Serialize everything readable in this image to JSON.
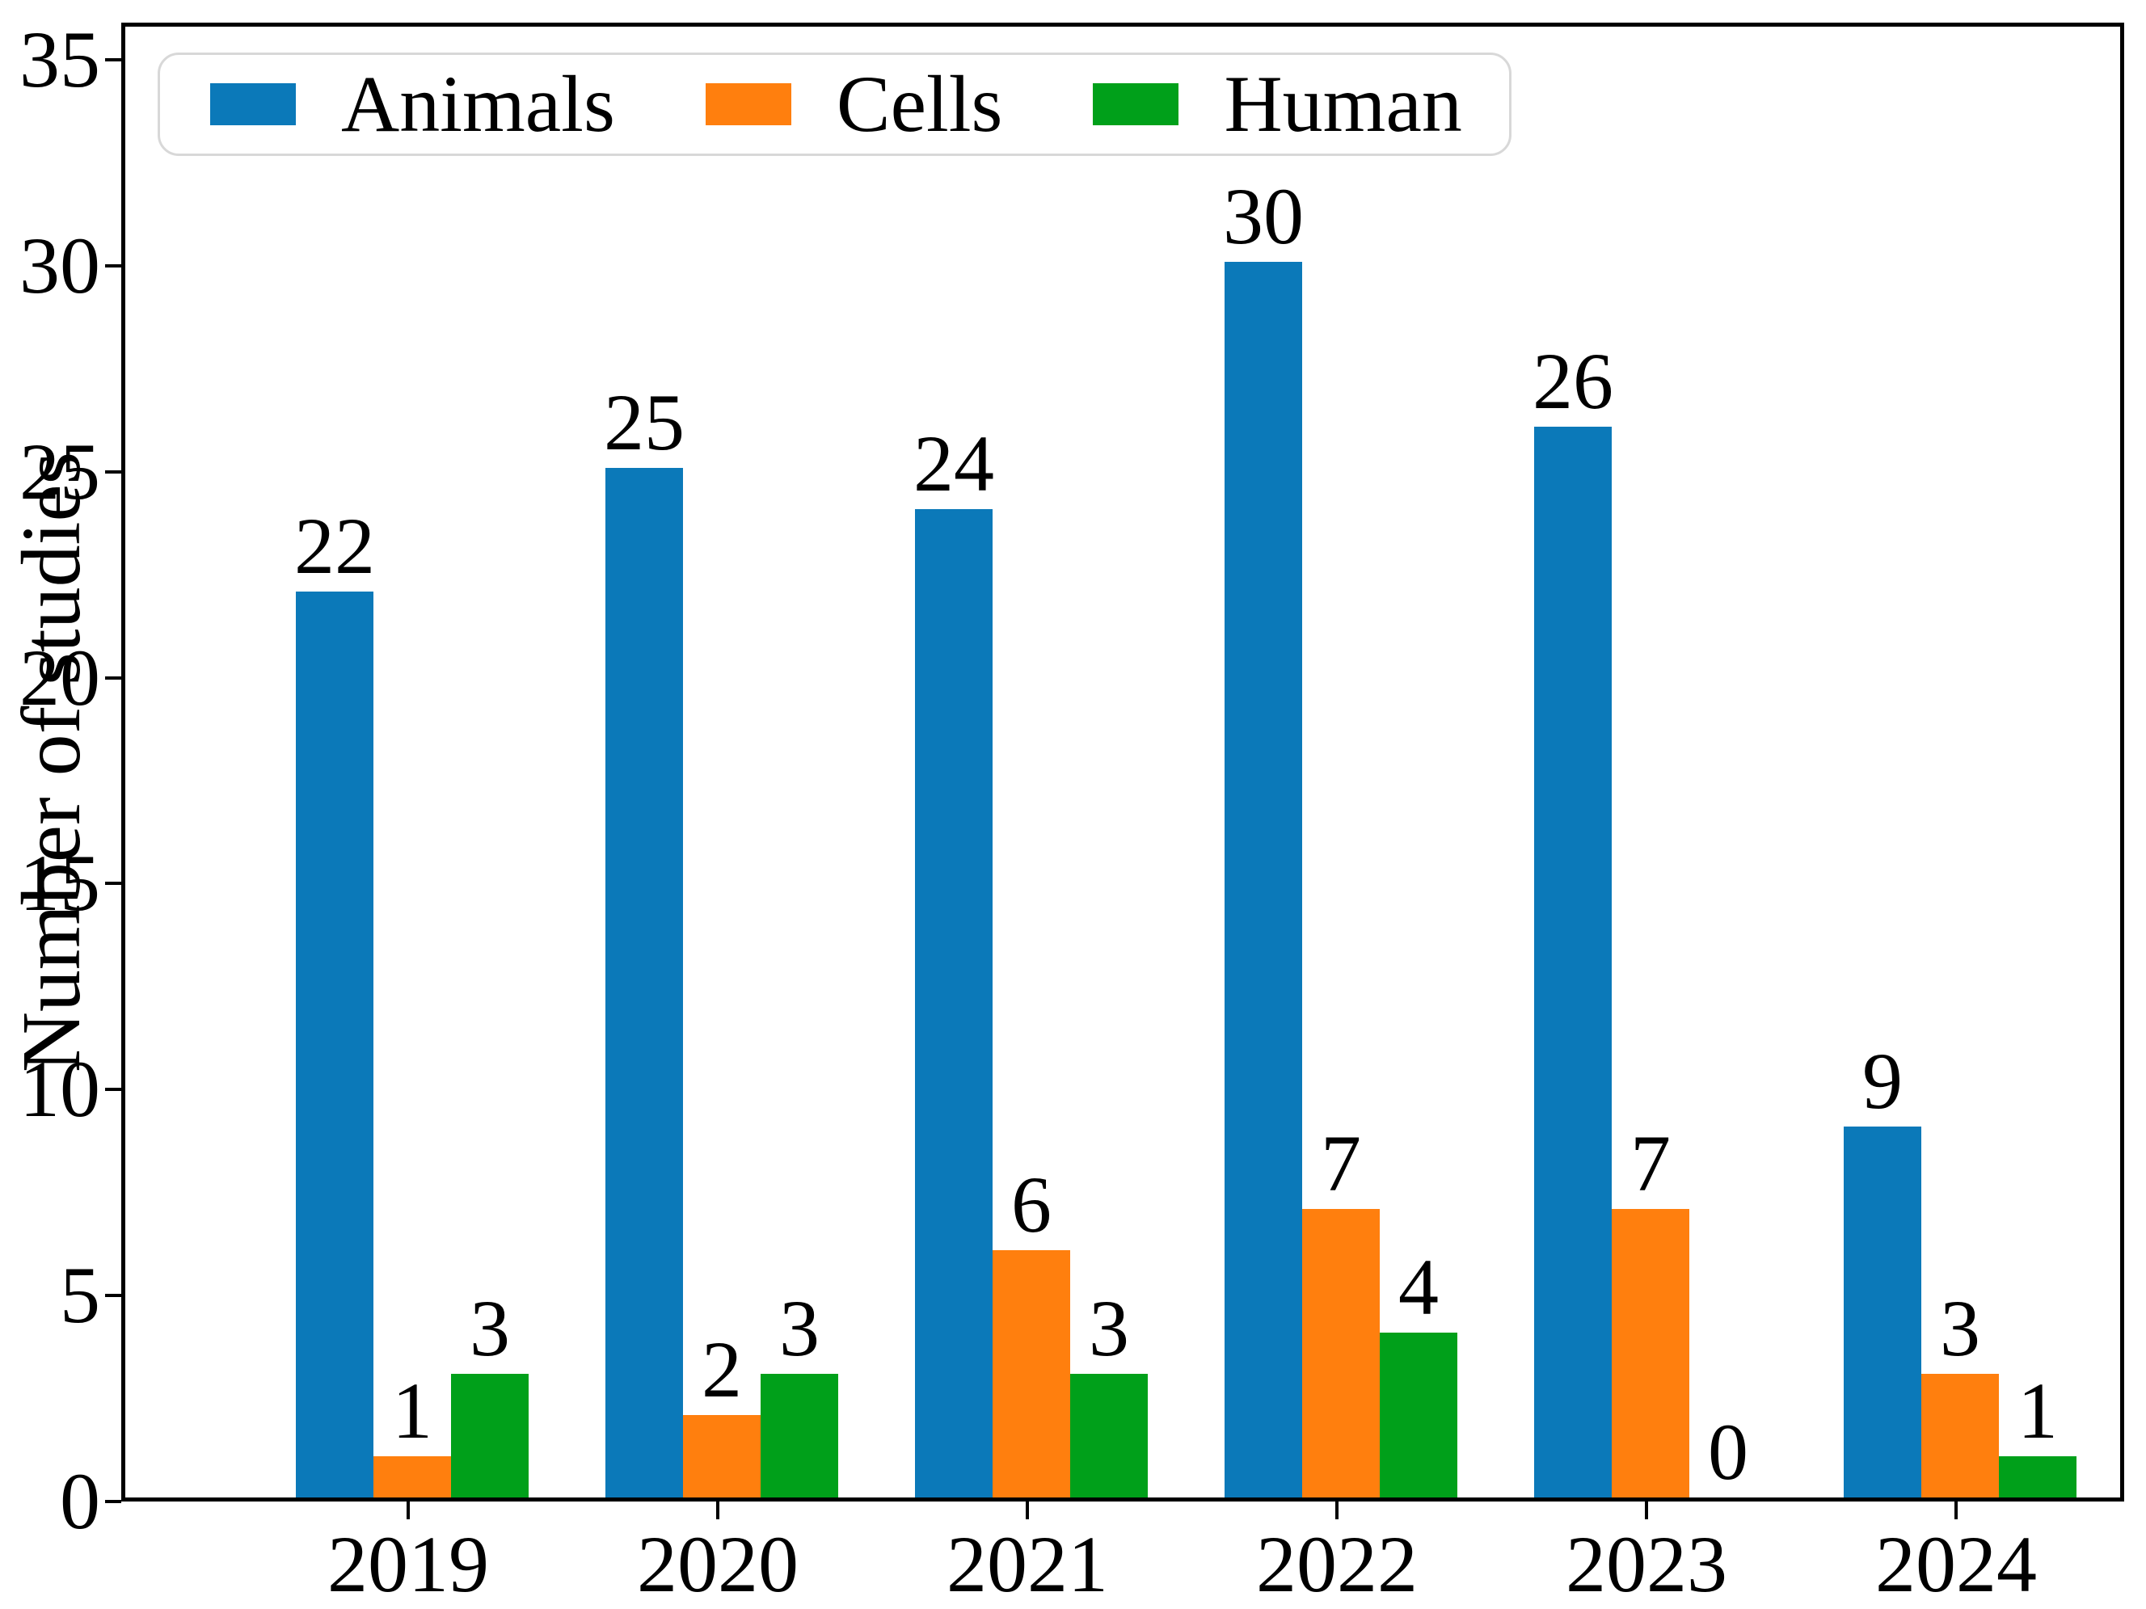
{
  "chart_data": {
    "type": "bar",
    "title": "",
    "xlabel": "",
    "ylabel": "Number of studies",
    "categories": [
      "2019",
      "2020",
      "2021",
      "2022",
      "2023",
      "2024"
    ],
    "series": [
      {
        "name": "Animals",
        "color": "#0b79b9",
        "values": [
          22,
          25,
          24,
          30,
          26,
          9
        ]
      },
      {
        "name": "Cells",
        "color": "#ff7f0e",
        "values": [
          1,
          2,
          6,
          7,
          7,
          3
        ]
      },
      {
        "name": "Human",
        "color": "#00a01a",
        "values": [
          3,
          3,
          3,
          4,
          0,
          1
        ]
      }
    ],
    "ylim": [
      0,
      35.9
    ],
    "yticks": [
      0,
      5,
      10,
      15,
      20,
      25,
      30,
      35
    ],
    "bar_value_labels": true,
    "grid": false,
    "legend_position": "top-left",
    "legend_border_color": "#d8d8d8",
    "axis_color": "#000000"
  }
}
